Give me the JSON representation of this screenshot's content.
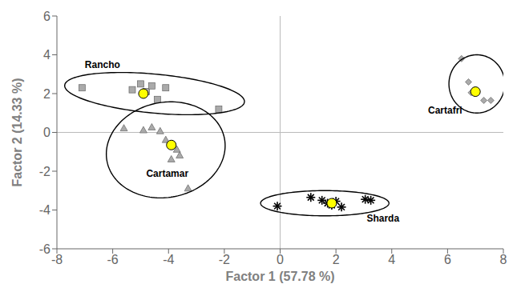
{
  "chart_data": {
    "type": "scatter",
    "xlabel": "Factor 1 (57.78 %)",
    "ylabel": "Factor 2 (14.33 %)",
    "xlim": [
      -8,
      8
    ],
    "ylim": [
      -6,
      6
    ],
    "xticks": [
      -8,
      -6,
      -4,
      -2,
      0,
      2,
      4,
      6,
      8
    ],
    "yticks": [
      -6,
      -4,
      -2,
      0,
      2,
      4,
      6
    ],
    "grid": false,
    "ref_lines": [
      {
        "axis": "x",
        "value": 0
      },
      {
        "axis": "y",
        "value": 0
      }
    ],
    "center_color": "#ffff00",
    "series": [
      {
        "name": "Rancho",
        "marker": "square",
        "color": "#aaaaaa",
        "points": [
          [
            -7.1,
            2.3
          ],
          [
            -5.3,
            2.2
          ],
          [
            -5.0,
            2.5
          ],
          [
            -4.8,
            2.1
          ],
          [
            -4.6,
            2.4
          ],
          [
            -4.4,
            1.7
          ],
          [
            -4.1,
            2.3
          ],
          [
            -2.2,
            1.2
          ]
        ],
        "center": [
          -4.9,
          2.0
        ],
        "label_at": [
          -7.0,
          3.3
        ],
        "ellipse": {
          "cx": -4.5,
          "cy": 2.0,
          "width": 6.5,
          "height": 2.0,
          "angle": -8
        }
      },
      {
        "name": "Cartamar",
        "marker": "triangle",
        "color": "#aaaaaa",
        "points": [
          [
            -5.6,
            0.2
          ],
          [
            -4.9,
            0.1
          ],
          [
            -4.6,
            0.25
          ],
          [
            -4.3,
            0.05
          ],
          [
            -4.1,
            -0.4
          ],
          [
            -3.9,
            -0.7
          ],
          [
            -3.7,
            -0.9
          ],
          [
            -3.6,
            -1.2
          ],
          [
            -3.3,
            -2.9
          ],
          [
            -3.9,
            -1.4
          ]
        ],
        "center": [
          -3.9,
          -0.65
        ],
        "label_at": [
          -4.8,
          -2.3
        ],
        "ellipse": {
          "cx": -4.1,
          "cy": -0.9,
          "width": 4.2,
          "height": 5.0,
          "angle": -15
        }
      },
      {
        "name": "Sharda",
        "marker": "asterisk",
        "color": "#000000",
        "points": [
          [
            -0.1,
            -3.8
          ],
          [
            1.1,
            -3.35
          ],
          [
            1.5,
            -3.5
          ],
          [
            1.7,
            -3.65
          ],
          [
            1.85,
            -3.75
          ],
          [
            2.0,
            -3.55
          ],
          [
            2.2,
            -3.85
          ],
          [
            3.05,
            -3.45
          ],
          [
            3.25,
            -3.5
          ]
        ],
        "center": [
          1.85,
          -3.65
        ],
        "label_at": [
          3.1,
          -4.6
        ],
        "ellipse": {
          "cx": 1.6,
          "cy": -3.65,
          "width": 4.6,
          "height": 1.3,
          "angle": 0
        }
      },
      {
        "name": "Cartafri",
        "marker": "diamond",
        "color": "#aaaaaa",
        "points": [
          [
            6.5,
            3.8
          ],
          [
            6.75,
            2.6
          ],
          [
            6.85,
            2.05
          ],
          [
            7.05,
            2.1
          ],
          [
            7.3,
            1.65
          ],
          [
            7.55,
            1.65
          ]
        ],
        "center": [
          7.0,
          2.1
        ],
        "label_at": [
          5.3,
          0.95
        ],
        "ellipse": {
          "cx": 7.05,
          "cy": 2.5,
          "width": 2.0,
          "height": 3.0,
          "angle": 0
        }
      }
    ]
  }
}
